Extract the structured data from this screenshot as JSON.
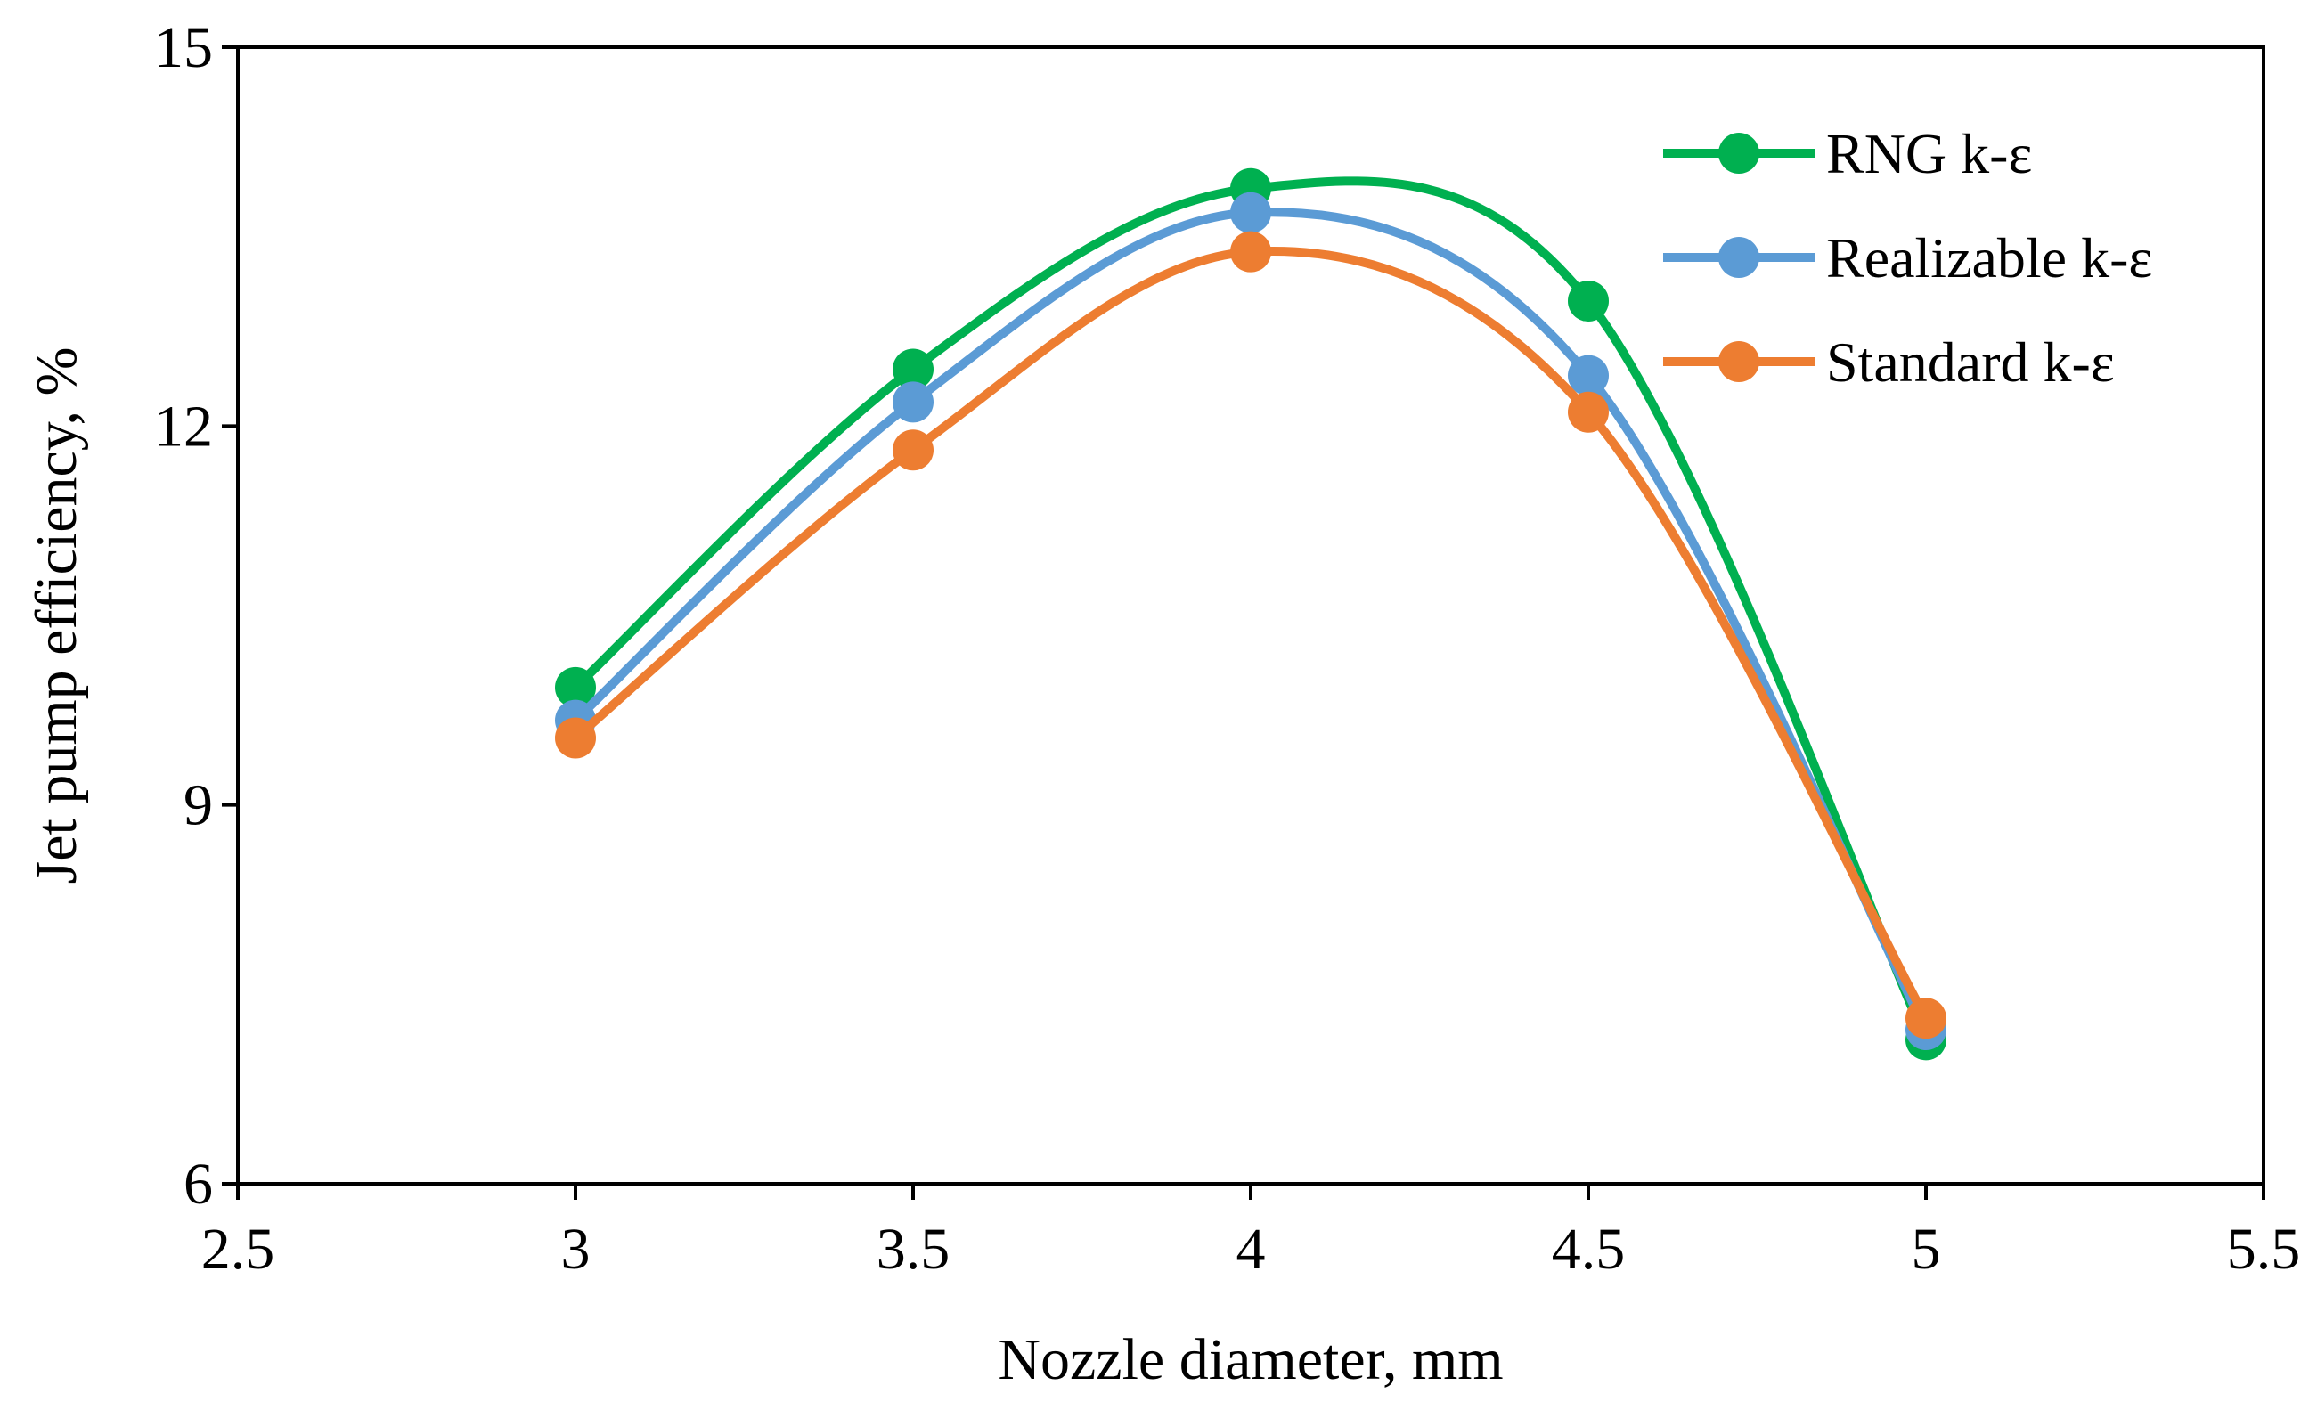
{
  "chart_data": {
    "type": "line",
    "title": "",
    "xlabel": "Nozzle diameter, mm",
    "ylabel": "Jet pump efficiency, %",
    "xlim": [
      2.5,
      5.5
    ],
    "ylim": [
      6,
      15
    ],
    "xticks": [
      2.5,
      3,
      3.5,
      4,
      4.5,
      5,
      5.5
    ],
    "yticks": [
      6,
      9,
      12,
      15
    ],
    "grid": false,
    "smooth": true,
    "legend_position": "top-right",
    "x": [
      3,
      3.5,
      4,
      4.5,
      5
    ],
    "series": [
      {
        "name": "RNG k-ε",
        "color": "#00b050",
        "values": [
          9.93,
          12.45,
          13.88,
          12.99,
          7.14
        ]
      },
      {
        "name": "Realizable k-ε",
        "color": "#5b9bd5",
        "values": [
          9.67,
          12.19,
          13.69,
          12.4,
          7.22
        ]
      },
      {
        "name": "Standard k-ε",
        "color": "#ed7d31",
        "values": [
          9.53,
          11.81,
          13.38,
          12.11,
          7.31
        ]
      }
    ]
  }
}
